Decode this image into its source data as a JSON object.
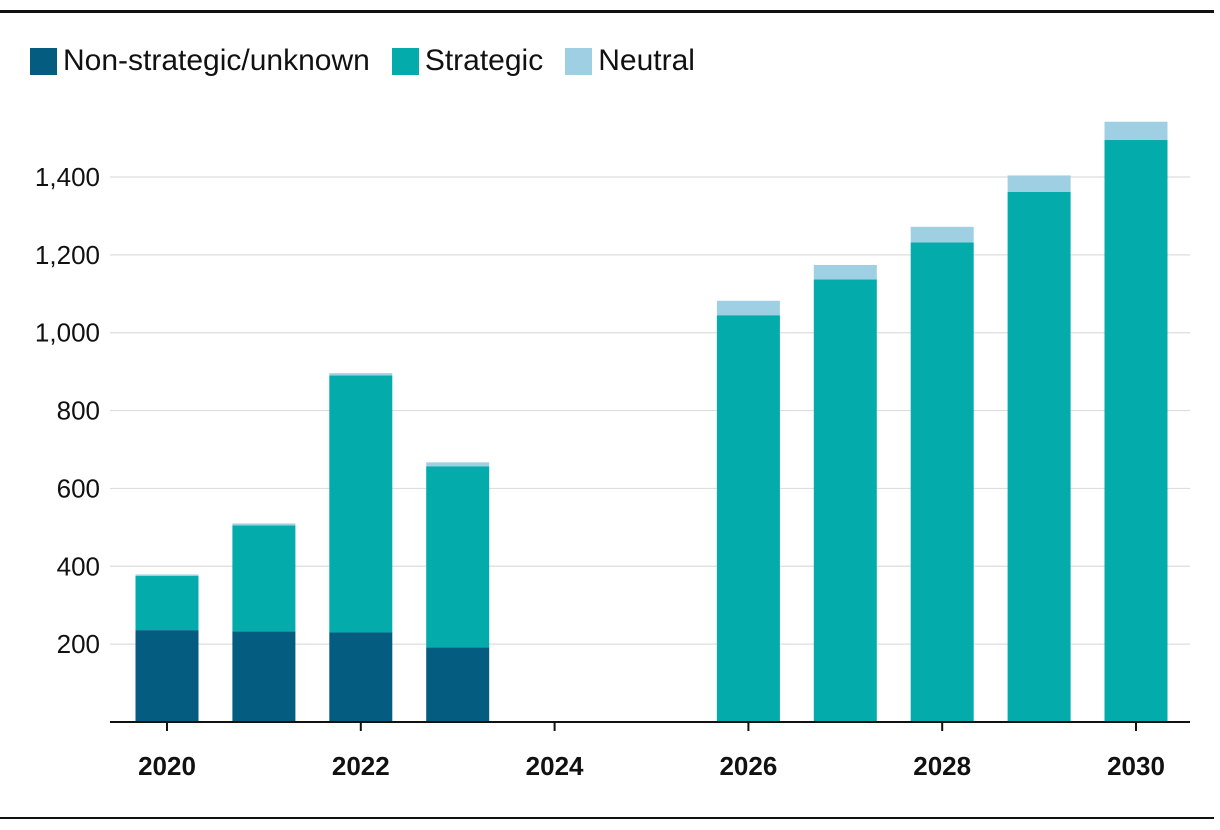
{
  "colors": {
    "non_strategic": "#045c80",
    "strategic": "#03abab",
    "neutral": "#9ecfe3",
    "gridline": "#dddddd",
    "axis": "#111111"
  },
  "legend": [
    {
      "key": "non_strategic",
      "label": "Non-strategic/unknown"
    },
    {
      "key": "strategic",
      "label": "Strategic"
    },
    {
      "key": "neutral",
      "label": "Neutral"
    }
  ],
  "chart_data": {
    "type": "bar",
    "stacked": true,
    "title": "",
    "xlabel": "",
    "ylabel": "",
    "x": [
      2020,
      2021,
      2022,
      2023,
      2024,
      2025,
      2026,
      2027,
      2028,
      2029,
      2030
    ],
    "x_tick_labels": [
      "2020",
      "2022",
      "2024",
      "2026",
      "2028",
      "2030"
    ],
    "y_tick_values": [
      200,
      400,
      600,
      800,
      1000,
      1200,
      1400
    ],
    "y_tick_labels": [
      "200",
      "400",
      "600",
      "800",
      "1,000",
      "1,200",
      "1,400"
    ],
    "ylim": [
      0,
      1600
    ],
    "grid": true,
    "legend_position": "top-left",
    "series": [
      {
        "name": "Non-strategic/unknown",
        "key": "non_strategic",
        "values": [
          236,
          233,
          230,
          192,
          null,
          null,
          0,
          0,
          0,
          0,
          0
        ]
      },
      {
        "name": "Strategic",
        "key": "strategic",
        "values": [
          139,
          272,
          660,
          465,
          null,
          null,
          1045,
          1137,
          1232,
          1362,
          1495
        ]
      },
      {
        "name": "Neutral",
        "key": "neutral",
        "values": [
          4,
          5,
          6,
          10,
          null,
          null,
          37,
          37,
          40,
          42,
          47
        ]
      }
    ]
  }
}
